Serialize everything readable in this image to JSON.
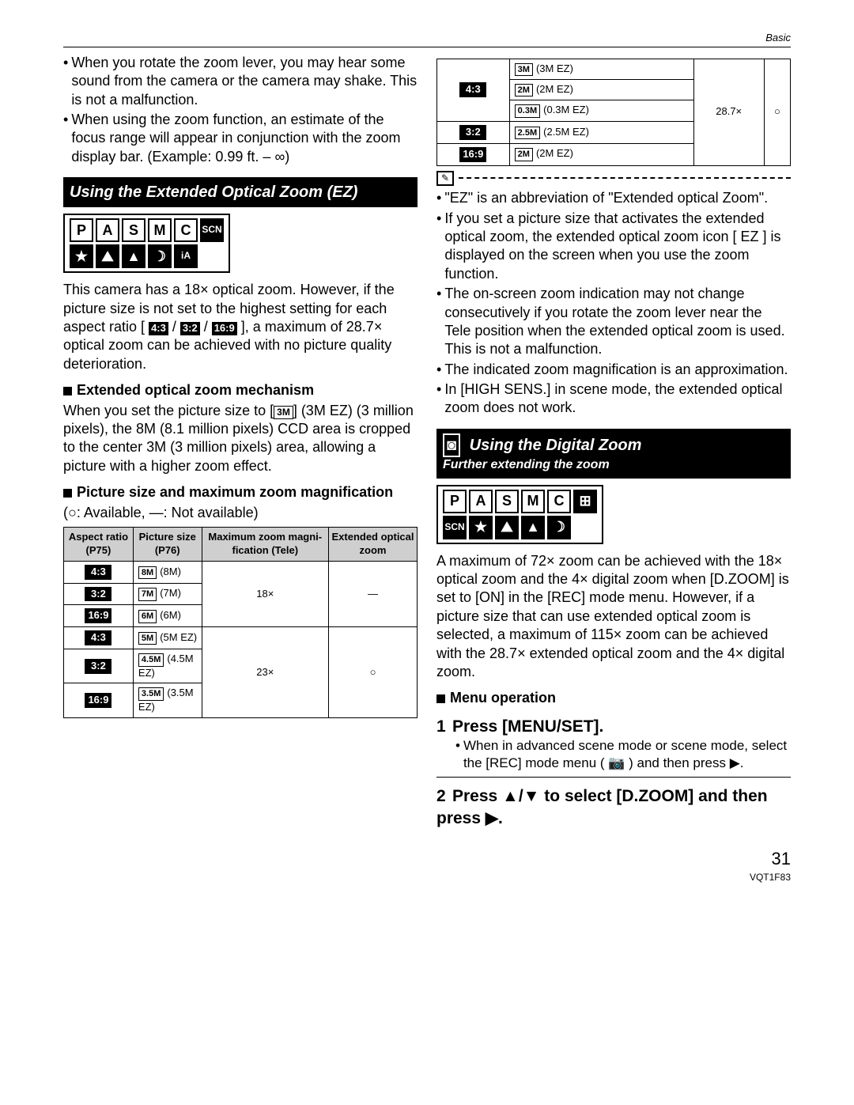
{
  "header_label": "Basic",
  "left": {
    "bullets_top": [
      "When you rotate the zoom lever, you may hear some sound from the camera or the camera may shake. This is not a malfunction.",
      "When using the zoom function, an estimate of the focus range will appear in conjunction with the zoom display bar. (Example:  0.99 ft. – ∞)"
    ],
    "section1_title": "Using the Extended Optical Zoom (EZ)",
    "modes1_row1": [
      "P",
      "A",
      "S",
      "M",
      "C",
      "SCN"
    ],
    "modes1_row2": [
      "★",
      "⛰",
      "▲",
      "☽",
      "iA"
    ],
    "intro1_a": "This camera has a 18× optical zoom. However, if the picture size is not set to the highest setting for each aspect ratio [",
    "intro1_b": "], a maximum of 28.7× optical zoom can be achieved with no picture quality deterioration.",
    "sub1": "Extended optical zoom mechanism",
    "mech_a": "When you set the picture size to [",
    "mech_size": "3M",
    "mech_b": "] (3M EZ) (3 million pixels), the 8M (8.1 million pixels) CCD area is cropped to the center 3M (3 million pixels) area, allowing a picture with a higher zoom effect.",
    "sub2": "Picture size and maximum zoom magnification",
    "legend": "(○:  Available, —:  Not available)",
    "table_headers": [
      "Aspect ratio (P75)",
      "Picture size (P76)",
      "Maximum zoom magni-fication (Tele)",
      "Extended optical zoom"
    ],
    "table_rows": [
      {
        "ratio": "4:3",
        "size_badge": "8M",
        "size_label": "(8M)",
        "mag": "18×",
        "ext": "—",
        "rs_mag": 3,
        "rs_ext": 3
      },
      {
        "ratio": "3:2",
        "size_badge": "7M",
        "size_label": "(7M)"
      },
      {
        "ratio": "16:9",
        "size_badge": "6M",
        "size_label": "(6M)"
      },
      {
        "ratio": "4:3",
        "size_badge": "5M",
        "size_label": "(5M EZ)",
        "mag": "23×",
        "ext": "○",
        "rs_mag": 3,
        "rs_ext": 3
      },
      {
        "ratio": "3:2",
        "size_badge": "4.5M",
        "size_label": "(4.5M EZ)"
      },
      {
        "ratio": "16:9",
        "size_badge": "3.5M",
        "size_label": "(3.5M EZ)"
      }
    ]
  },
  "right": {
    "table2_rows": [
      {
        "ratio": "4:3",
        "sizes": [
          [
            "3M",
            "(3M EZ)"
          ],
          [
            "2M",
            "(2M EZ)"
          ],
          [
            "0.3M",
            "(0.3M EZ)"
          ]
        ],
        "mag": "28.7×",
        "ext": "○",
        "rs_ratio": 1,
        "rs_mag": 3,
        "rs_ext": 3
      },
      {
        "ratio": "3:2",
        "sizes": [
          [
            "2.5M",
            "(2.5M EZ)"
          ]
        ],
        "rs_ratio": 1
      },
      {
        "ratio": "16:9",
        "sizes": [
          [
            "2M",
            "(2M EZ)"
          ]
        ],
        "rs_ratio": 1
      }
    ],
    "bullets_ez": [
      "\"EZ\" is an abbreviation of \"Extended optical Zoom\".",
      "If you set a picture size that activates the extended optical zoom, the extended optical zoom icon [ EZ ] is displayed on the screen when you use the zoom function.",
      "The on-screen zoom indication may not change consecutively if you rotate the zoom lever near the Tele position when the extended optical zoom is used. This is not a malfunction.",
      "The indicated zoom magnification is an approximation.",
      "In [HIGH SENS.] in scene mode, the extended optical zoom does not work."
    ],
    "section2_title": "Using the Digital Zoom",
    "section2_sub": "Further extending the zoom",
    "modes2_row1": [
      "P",
      "A",
      "S",
      "M",
      "C",
      "⊞"
    ],
    "modes2_row2": [
      "SCN",
      "★",
      "⛰",
      "▲",
      "☽"
    ],
    "digital_text": "A maximum of 72× zoom can be achieved with the 18× optical zoom and the 4× digital zoom when [D.ZOOM] is set to [ON] in the [REC] mode menu. However, if a picture size that can use extended optical zoom is selected, a maximum of 115× zoom can be achieved with the 28.7× extended optical zoom and the 4× digital zoom.",
    "sub3": "Menu operation",
    "step1": "Press [MENU/SET].",
    "step1_body": "When in advanced scene mode or scene mode, select the [REC] mode menu ( 📷 ) and then press ▶.",
    "step2": "Press ▲/▼ to select [D.ZOOM] and then press ▶."
  },
  "page_number": "31",
  "doc_id": "VQT1F83"
}
